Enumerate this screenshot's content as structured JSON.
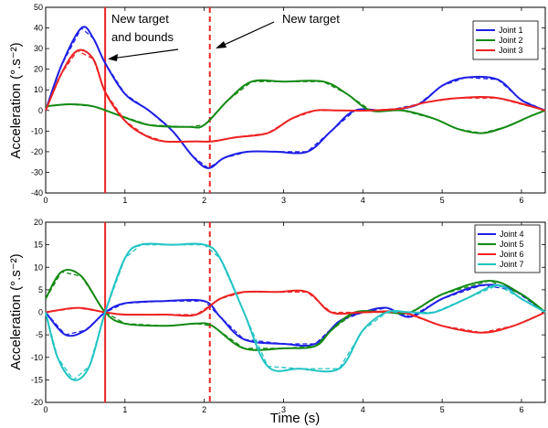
{
  "chart_data": [
    {
      "type": "line",
      "ylabel": "Acceleration (°.s⁻²)",
      "xlabel": "",
      "xlim": [
        0,
        6.3
      ],
      "ylim": [
        -40,
        50
      ],
      "xticks": [
        "0",
        "1",
        "2",
        "3",
        "4",
        "5",
        "6"
      ],
      "yticks": [
        "50",
        "40",
        "30",
        "20",
        "10",
        "0",
        "-10",
        "-20",
        "-30",
        "-40"
      ],
      "legend_position": "top-right",
      "vlines": [
        {
          "x": 0.75,
          "style": "solid",
          "color": "#ee2222"
        },
        {
          "x": 2.07,
          "style": "dashed",
          "color": "#ee2222"
        }
      ],
      "annotations": [
        {
          "lines": [
            "New target",
            "and bounds"
          ]
        },
        {
          "lines": [
            "New target"
          ]
        }
      ],
      "series": [
        {
          "name": "Joint 1",
          "color": "#1f1fe6",
          "x": [
            0,
            0.2,
            0.45,
            0.6,
            0.75,
            1.0,
            1.3,
            1.6,
            1.85,
            2.05,
            2.25,
            2.55,
            2.9,
            3.3,
            3.6,
            3.9,
            4.3,
            4.7,
            5.0,
            5.3,
            5.7,
            6.0,
            6.3
          ],
          "y": [
            0,
            22,
            40,
            35,
            23,
            8,
            0,
            -10,
            -22,
            -28,
            -23,
            -20,
            -20,
            -20,
            -10,
            0,
            0,
            3,
            12,
            16,
            15,
            5,
            0
          ]
        },
        {
          "name": "Joint 2",
          "color": "#138a13",
          "x": [
            0,
            0.3,
            0.6,
            0.9,
            1.3,
            1.8,
            2.0,
            2.3,
            2.6,
            3.0,
            3.5,
            3.8,
            4.1,
            4.5,
            4.9,
            5.2,
            5.5,
            5.8,
            6.1,
            6.3
          ],
          "y": [
            2,
            3,
            2,
            -2,
            -7,
            -8,
            -7,
            5,
            14,
            14,
            14,
            8,
            0,
            0,
            -4,
            -9,
            -11,
            -8,
            -3,
            0
          ]
        },
        {
          "name": "Joint 3",
          "color": "#ee2222",
          "x": [
            0,
            0.2,
            0.4,
            0.6,
            0.75,
            1.0,
            1.25,
            1.5,
            1.9,
            2.1,
            2.4,
            2.8,
            3.1,
            3.4,
            3.7,
            4.1,
            4.5,
            4.8,
            5.2,
            5.7,
            6.3
          ],
          "y": [
            0,
            18,
            29,
            25,
            9,
            -5,
            -12,
            -15,
            -15,
            -15,
            -13,
            -11,
            -4,
            0,
            0,
            0,
            1,
            4,
            6,
            6,
            0
          ]
        }
      ]
    },
    {
      "type": "line",
      "ylabel": "Acceleration (°.s⁻²)",
      "xlabel": "Time (s)",
      "xlim": [
        0,
        6.3
      ],
      "ylim": [
        -20,
        20
      ],
      "xticks": [
        "0",
        "1",
        "2",
        "3",
        "4",
        "5",
        "6"
      ],
      "yticks": [
        "20",
        "15",
        "10",
        "5",
        "0",
        "-5",
        "-10",
        "-15",
        "-20"
      ],
      "legend_position": "top-right",
      "vlines": [
        {
          "x": 0.75,
          "style": "solid",
          "color": "#ee2222"
        },
        {
          "x": 2.07,
          "style": "dashed",
          "color": "#ee2222"
        }
      ],
      "series": [
        {
          "name": "Joint 4",
          "color": "#1f1fe6",
          "x": [
            0,
            0.25,
            0.5,
            0.75,
            1.0,
            1.5,
            2.0,
            2.2,
            2.5,
            3.0,
            3.4,
            3.7,
            4.0,
            4.3,
            4.6,
            5.0,
            5.5,
            5.9,
            6.3
          ],
          "y": [
            0,
            -5,
            -4,
            0,
            2,
            2.5,
            2.5,
            -1,
            -6,
            -7,
            -7,
            -2,
            0,
            1,
            -1,
            3,
            6,
            5,
            0
          ]
        },
        {
          "name": "Joint 5",
          "color": "#138a13",
          "x": [
            0,
            0.2,
            0.45,
            0.75,
            1.0,
            1.5,
            1.9,
            2.1,
            2.5,
            3.0,
            3.4,
            3.6,
            3.9,
            4.3,
            4.6,
            5.0,
            5.6,
            6.0,
            6.3
          ],
          "y": [
            3,
            9,
            8,
            0,
            -2.5,
            -3,
            -2.5,
            -3,
            -8,
            -8,
            -7.5,
            -4,
            0,
            0,
            0,
            4,
            7,
            4,
            0
          ]
        },
        {
          "name": "Joint 6",
          "color": "#ee2222",
          "x": [
            0,
            0.4,
            0.75,
            1.0,
            1.5,
            1.9,
            2.2,
            2.5,
            2.9,
            3.3,
            3.6,
            4.0,
            4.5,
            5.0,
            5.5,
            5.9,
            6.3
          ],
          "y": [
            0,
            1,
            0,
            -0.5,
            -0.5,
            -0.5,
            3,
            4.5,
            4.5,
            4.5,
            0,
            0,
            0,
            -3,
            -4.5,
            -3,
            0
          ]
        },
        {
          "name": "Joint 7",
          "color": "#22c4c4",
          "x": [
            0,
            0.15,
            0.35,
            0.55,
            0.75,
            1.0,
            1.2,
            1.6,
            2.0,
            2.2,
            2.5,
            2.8,
            3.2,
            3.7,
            4.0,
            4.3,
            4.6,
            4.9,
            5.3,
            5.7,
            6.0,
            6.3
          ],
          "y": [
            0,
            -10,
            -15,
            -12,
            0,
            12,
            15,
            15,
            15,
            12,
            0,
            -12,
            -12.5,
            -12.5,
            -4,
            0,
            0,
            0,
            3,
            6,
            3,
            0
          ]
        }
      ]
    }
  ]
}
